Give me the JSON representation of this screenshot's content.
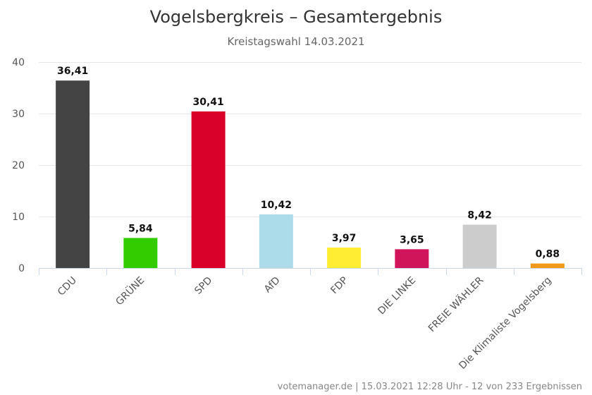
{
  "chart_data": {
    "type": "bar",
    "title": "Vogelsbergkreis – Gesamtergebnis",
    "subtitle": "Kreistagswahl 14.03.2021",
    "categories": [
      "CDU",
      "GRÜNE",
      "SPD",
      "AfD",
      "FDP",
      "DIE LINKE",
      "FREIE WÄHLER",
      "Die Klimaliste Vogelsberg"
    ],
    "values": [
      36.41,
      5.84,
      30.41,
      10.42,
      3.97,
      3.65,
      8.42,
      0.88
    ],
    "value_labels": [
      "36,41",
      "5,84",
      "30,41",
      "10,42",
      "3,97",
      "3,65",
      "8,42",
      "0,88"
    ],
    "colors": [
      "#444444",
      "#33cc00",
      "#d9002a",
      "#acdce9",
      "#ffed33",
      "#d0155a",
      "#cccccc",
      "#f19a1a"
    ],
    "yticks": [
      0,
      10,
      20,
      30,
      40
    ],
    "ylim": [
      0,
      40
    ],
    "grid": true,
    "legend": "none"
  },
  "credits": "votemanager.de | 15.03.2021 12:28 Uhr - 12 von 233 Ergebnissen"
}
